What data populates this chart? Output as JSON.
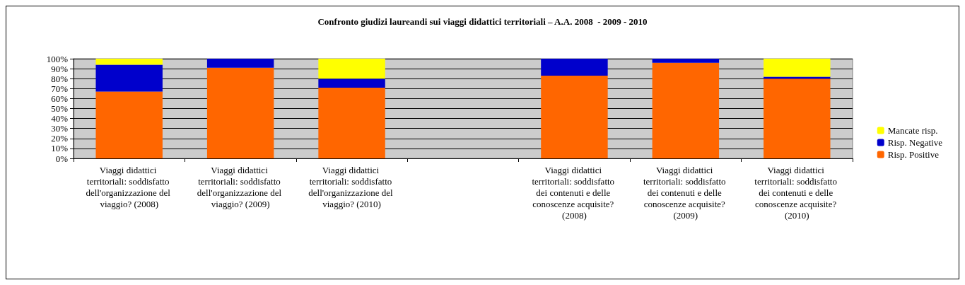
{
  "chart_data": {
    "type": "bar",
    "title": "Confronto giudizi laureandi sui viaggi didattici territoriali – A.A. 2008  - 2009 - 2010",
    "categories": [
      "Viaggi didattici territoriali: soddisfatto dell'organizzazione del viaggio? (2008)",
      "Viaggi didattici territoriali: soddisfatto dell'organizzazione del viaggio? (2009)",
      "Viaggi didattici territoriali: soddisfatto dell'organizzazione del viaggio? (2010)",
      null,
      "Viaggi didattici territoriali: soddisfatto dei contenuti e delle conoscenze acquisite? (2008)",
      "Viaggi didattici territoriali: soddisfatto dei contenuti e delle conoscenze acquisite? (2009)",
      "Viaggi didattici territoriali: soddisfatto dei contenuti e delle conoscenze acquisite? (2010)"
    ],
    "stacked": true,
    "series": [
      {
        "name": "Risp. Positive",
        "color": "#ff6600",
        "values": [
          67,
          91,
          71,
          null,
          83,
          96,
          80
        ]
      },
      {
        "name": "Risp. Negative",
        "color": "#0000cc",
        "values": [
          27,
          9,
          9,
          null,
          17,
          4,
          2
        ]
      },
      {
        "name": "Mancate risp.",
        "color": "#ffff00",
        "values": [
          6,
          0,
          20,
          null,
          0,
          0,
          18
        ]
      }
    ],
    "ylim": [
      0,
      100
    ],
    "yticks": [
      {
        "value": 0,
        "label": "0%"
      },
      {
        "value": 10,
        "label": "10%"
      },
      {
        "value": 20,
        "label": "20%"
      },
      {
        "value": 30,
        "label": "30%"
      },
      {
        "value": 40,
        "label": "40%"
      },
      {
        "value": 50,
        "label": "50%"
      },
      {
        "value": 60,
        "label": "60%"
      },
      {
        "value": 70,
        "label": "70%"
      },
      {
        "value": 80,
        "label": "80%"
      },
      {
        "value": 90,
        "label": "90%"
      },
      {
        "value": 100,
        "label": "100%"
      }
    ],
    "grid": "y",
    "legend": "right"
  }
}
